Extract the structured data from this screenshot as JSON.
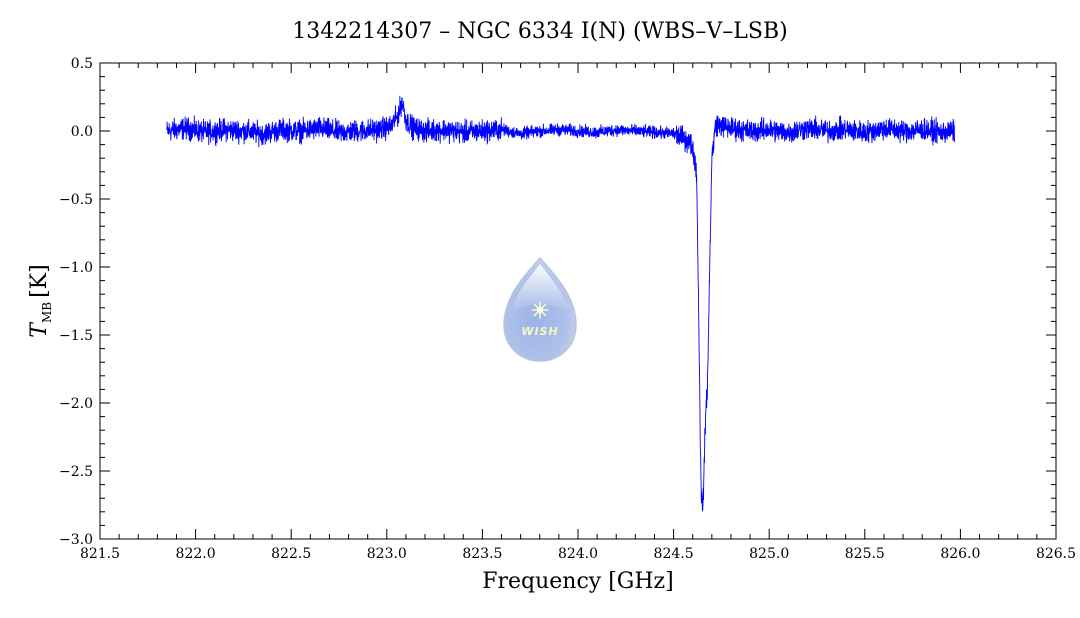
{
  "chart_data": {
    "type": "line",
    "title": "1342214307 – NGC 6334 I(N) (WBS–V–LSB)",
    "xlabel": "Frequency [GHz]",
    "ylabel_symbol": "T",
    "ylabel_subscript": "MB",
    "ylabel_unit": "[K]",
    "xlim": [
      821.5,
      826.5
    ],
    "ylim": [
      -3.0,
      0.5
    ],
    "x_ticks": [
      821.5,
      822.0,
      822.5,
      823.0,
      823.5,
      824.0,
      824.5,
      825.0,
      825.5,
      826.0,
      826.5
    ],
    "x_tick_labels": [
      "821.5",
      "822.0",
      "822.5",
      "823.0",
      "823.5",
      "824.0",
      "824.5",
      "825.0",
      "825.5",
      "826.0",
      "826.5"
    ],
    "y_ticks": [
      -3.0,
      -2.5,
      -2.0,
      -1.5,
      -1.0,
      -0.5,
      0.0,
      0.5
    ],
    "y_tick_labels": [
      "−3.0",
      "−2.5",
      "−2.0",
      "−1.5",
      "−1.0",
      "−0.5",
      "0.0",
      "0.5"
    ],
    "grid": false,
    "line_color": "#0000ff",
    "series": [
      {
        "x": [
          821.85,
          821.95,
          822.05,
          822.15,
          822.25,
          822.35,
          822.45,
          822.55,
          822.65,
          822.75,
          822.85,
          822.95,
          823.02,
          823.06,
          823.08,
          823.1,
          823.14,
          823.2,
          823.3,
          823.4,
          823.5,
          823.6,
          823.7,
          823.8,
          823.9,
          824.0,
          824.1,
          824.2,
          824.3,
          824.4,
          824.5,
          824.55,
          824.58,
          824.6,
          824.62,
          824.63,
          824.64,
          824.645,
          824.65,
          824.655,
          824.66,
          824.665,
          824.67,
          824.675,
          824.68,
          824.69,
          824.7,
          824.72,
          824.75,
          824.8,
          824.9,
          825.0,
          825.1,
          825.2,
          825.3,
          825.4,
          825.5,
          825.6,
          825.7,
          825.8,
          825.9,
          825.97
        ],
        "y": [
          0.0,
          0.02,
          -0.01,
          0.01,
          0.0,
          -0.02,
          0.01,
          0.0,
          0.02,
          -0.01,
          0.0,
          0.01,
          0.03,
          0.12,
          0.22,
          0.08,
          0.02,
          0.0,
          0.01,
          -0.01,
          0.0,
          0.01,
          -0.02,
          0.0,
          0.01,
          0.0,
          -0.01,
          0.01,
          0.0,
          -0.01,
          -0.02,
          -0.05,
          -0.08,
          -0.12,
          -0.3,
          -1.2,
          -2.3,
          -2.65,
          -2.78,
          -2.7,
          -2.45,
          -2.2,
          -2.0,
          -1.95,
          -1.7,
          -0.9,
          -0.2,
          0.05,
          0.04,
          0.02,
          0.0,
          0.01,
          -0.01,
          0.02,
          0.0,
          0.01,
          -0.01,
          0.02,
          0.0,
          0.01,
          -0.01,
          0.0
        ]
      }
    ],
    "noise_amplitude": 0.08
  },
  "logo": {
    "text": "WISH"
  }
}
